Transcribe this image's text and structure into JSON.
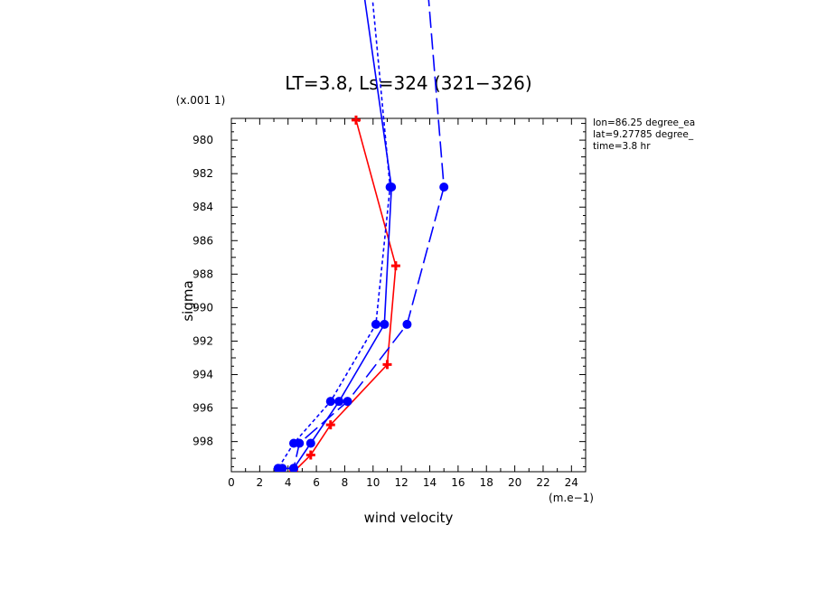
{
  "chart_data": {
    "type": "line",
    "title": "LT=3.8, Ls=324 (321−326)",
    "xlabel": "wind velocity",
    "ylabel": "sigma",
    "x_units": "(m.e−1)",
    "y_units": "(x.001 1)",
    "xlim": [
      0,
      25
    ],
    "ylim": [
      999.8,
      978.7
    ],
    "y_reversed": true,
    "x_ticks": [
      0,
      2,
      4,
      6,
      8,
      10,
      12,
      14,
      16,
      18,
      20,
      22,
      24
    ],
    "y_ticks": [
      980,
      982,
      984,
      986,
      988,
      990,
      992,
      994,
      996,
      998
    ],
    "annotations": [
      "lon=86.25 degree_ea",
      "lat=9.27785 degree_",
      "time=3.8 hr"
    ],
    "series": [
      {
        "color": "#ff0000",
        "dash": "solid",
        "marker": "plus",
        "points": [
          [
            8.8,
            978.8
          ],
          [
            11.6,
            987.5
          ],
          [
            11.0,
            993.4
          ],
          [
            7.0,
            997.0
          ],
          [
            5.6,
            998.8
          ],
          [
            4.4,
            999.8
          ]
        ]
      },
      {
        "color": "#0000ff",
        "dash": "solid",
        "marker": "dot",
        "points": [
          [
            7.8,
            962.0
          ],
          [
            11.3,
            982.8
          ],
          [
            10.8,
            991.0
          ],
          [
            7.6,
            995.6
          ],
          [
            5.6,
            998.1
          ],
          [
            4.4,
            999.6
          ],
          [
            3.6,
            999.6
          ]
        ]
      },
      {
        "color": "#0000ff",
        "dash": "short",
        "marker": "dot",
        "points": [
          [
            8.9,
            962.0
          ],
          [
            11.2,
            982.8
          ],
          [
            10.2,
            991.0
          ],
          [
            7.0,
            995.6
          ],
          [
            4.4,
            998.1
          ],
          [
            3.3,
            999.6
          ]
        ]
      },
      {
        "color": "#0000ff",
        "dash": "long",
        "marker": "dot",
        "points": [
          [
            13.0,
            962.0
          ],
          [
            15.0,
            982.8
          ],
          [
            12.4,
            991.0
          ],
          [
            8.2,
            995.6
          ],
          [
            4.8,
            998.1
          ],
          [
            4.4,
            999.6
          ]
        ]
      }
    ]
  }
}
